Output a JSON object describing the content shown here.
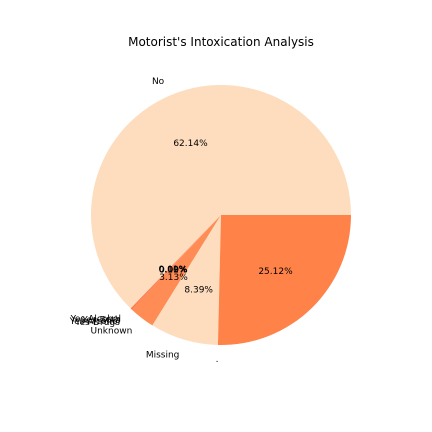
{
  "chart_data": {
    "type": "pie",
    "title": "Motorist's Intoxication Analysis",
    "xlabel": ".",
    "slices": [
      {
        "label": "No",
        "value": 62.14,
        "pct_label": "62.14%",
        "color": "#FDDDBE"
      },
      {
        "label": "Yes-Drugs",
        "value": 0.01,
        "pct_label": "0.01%",
        "color": "#FF6A3B"
      },
      {
        "label": "Yes-Alcohol",
        "value": 0.1,
        "pct_label": "0.10%",
        "color": "#FF6A3B"
      },
      {
        "label": "Yes-Both",
        "value": 0.02,
        "pct_label": "0.02%",
        "color": "#FF6A3B"
      },
      {
        "label": "Yes-Alcohol",
        "value": 0.09,
        "pct_label": "0.09%",
        "color": "#FF6A3B"
      },
      {
        "label": "Unknown",
        "value": 3.13,
        "pct_label": "3.13%",
        "color": "#FF8C54"
      },
      {
        "label": "Missing",
        "value": 8.39,
        "pct_label": "8.39%",
        "color": "#FDDDBE"
      },
      {
        "label": "",
        "value": 25.12,
        "pct_label": "25.12%",
        "color": "#FF8249"
      }
    ],
    "start_angle_deg": 0,
    "direction": "counterclockwise",
    "legend": "none"
  }
}
